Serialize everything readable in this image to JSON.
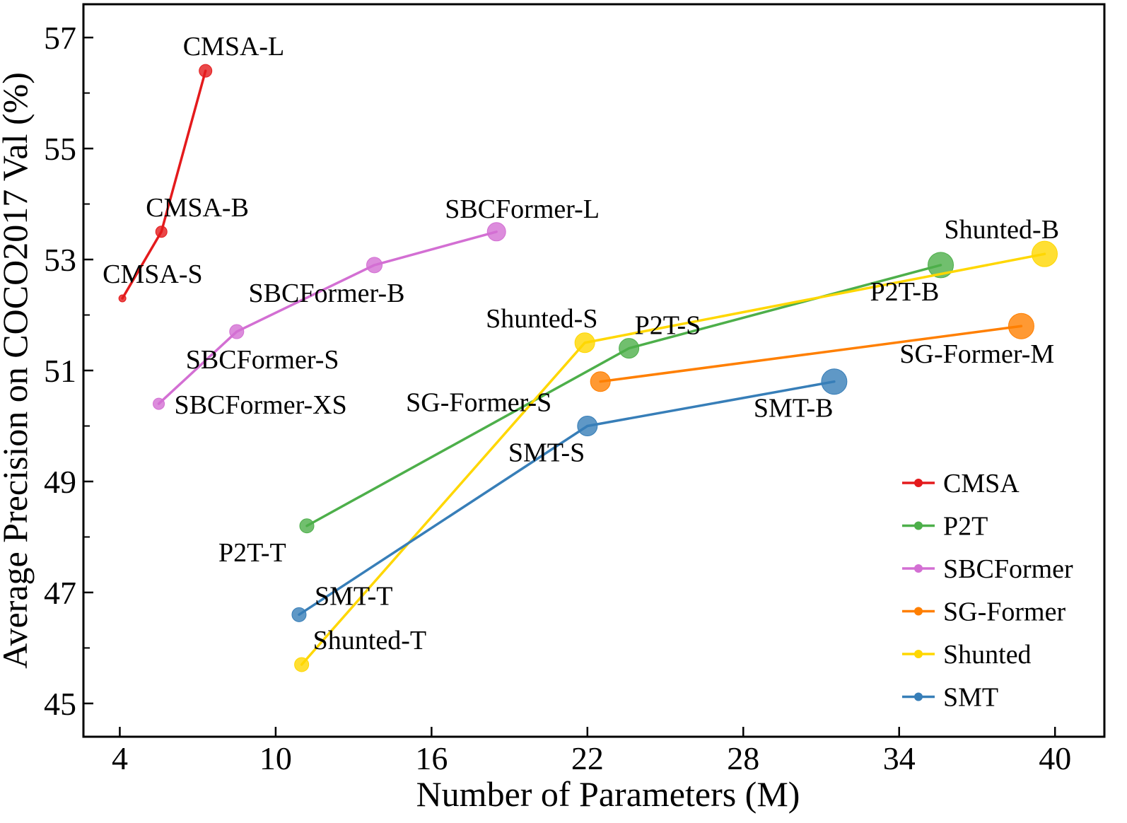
{
  "chart_data": {
    "type": "line",
    "xlabel": "Number of Parameters (M)",
    "ylabel": "Average Precision on COCO2017 Val (%)",
    "xlim": [
      2.6,
      41.9
    ],
    "ylim": [
      44.4,
      57.6
    ],
    "xticks": [
      4,
      10,
      16,
      22,
      28,
      34,
      40
    ],
    "yticks_labeled": [
      45,
      47,
      49,
      51,
      53,
      55,
      57
    ],
    "yticks_minor": [
      46,
      48,
      50,
      52,
      54,
      56
    ],
    "grid": false,
    "legend_position": "lower right",
    "series": [
      {
        "name": "CMSA",
        "color": "#e41a1c",
        "points": [
          {
            "x": 4.1,
            "y": 52.3,
            "label": "CMSA-S",
            "size": "small"
          },
          {
            "x": 5.6,
            "y": 53.5,
            "label": "CMSA-B",
            "size": "small"
          },
          {
            "x": 7.3,
            "y": 56.4,
            "label": "CMSA-L",
            "size": "small"
          }
        ]
      },
      {
        "name": "P2T",
        "color": "#4daf4a",
        "points": [
          {
            "x": 11.2,
            "y": 48.2,
            "label": "P2T-T",
            "size": "small"
          },
          {
            "x": 23.6,
            "y": 51.4,
            "label": "P2T-S",
            "size": "medium"
          },
          {
            "x": 35.6,
            "y": 52.9,
            "label": "P2T-B",
            "size": "large"
          }
        ]
      },
      {
        "name": "SBCFormer",
        "color": "#d36fd3",
        "points": [
          {
            "x": 5.5,
            "y": 50.4,
            "label": "SBCFormer-XS",
            "size": "small"
          },
          {
            "x": 8.5,
            "y": 51.7,
            "label": "SBCFormer-S",
            "size": "small"
          },
          {
            "x": 13.8,
            "y": 52.9,
            "label": "SBCFormer-B",
            "size": "medium"
          },
          {
            "x": 18.5,
            "y": 53.5,
            "label": "SBCFormer-L",
            "size": "medium"
          }
        ]
      },
      {
        "name": "SG-Former",
        "color": "#ff7f00",
        "points": [
          {
            "x": 22.5,
            "y": 50.8,
            "label": "SG-Former-S",
            "size": "medium"
          },
          {
            "x": 38.7,
            "y": 51.8,
            "label": "SG-Former-M",
            "size": "large"
          }
        ]
      },
      {
        "name": "Shunted",
        "color": "#ffd700",
        "points": [
          {
            "x": 11.0,
            "y": 45.7,
            "label": "Shunted-T",
            "size": "small"
          },
          {
            "x": 21.9,
            "y": 51.5,
            "label": "Shunted-S",
            "size": "medium"
          },
          {
            "x": 39.6,
            "y": 53.1,
            "label": "Shunted-B",
            "size": "large"
          }
        ]
      },
      {
        "name": "SMT",
        "color": "#377eb8",
        "points": [
          {
            "x": 10.9,
            "y": 46.6,
            "label": "SMT-T",
            "size": "small"
          },
          {
            "x": 22.0,
            "y": 50.0,
            "label": "SMT-S",
            "size": "medium"
          },
          {
            "x": 31.5,
            "y": 50.8,
            "label": "SMT-B",
            "size": "large"
          }
        ]
      }
    ]
  }
}
